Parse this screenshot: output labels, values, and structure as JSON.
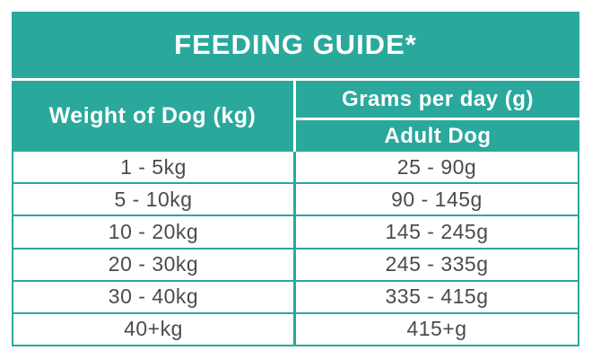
{
  "chart_data": {
    "type": "table",
    "title": "FEEDING GUIDE*",
    "column_headers": {
      "col1": "Weight of Dog (kg)",
      "col2_group": "Grams per day (g)",
      "col2_sub": "Adult Dog"
    },
    "rows": [
      [
        "1 - 5kg",
        "25 - 90g"
      ],
      [
        "5 - 10kg",
        "90 - 145g"
      ],
      [
        "10 - 20kg",
        "145 - 245g"
      ],
      [
        "20 - 30kg",
        "245 - 335g"
      ],
      [
        "30 - 40kg",
        "335 - 415g"
      ],
      [
        "40+kg",
        "415+g"
      ]
    ]
  },
  "colors": {
    "accent_teal": "#2aa89c",
    "data_text": "#4a4b4d",
    "header_text": "#ffffff",
    "background": "#ffffff"
  }
}
